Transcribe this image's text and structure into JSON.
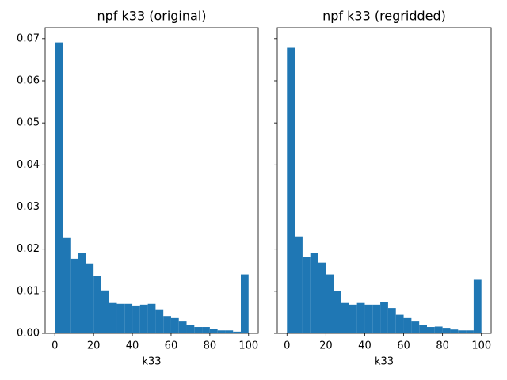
{
  "chart_data": [
    {
      "type": "histogram",
      "title": "npf k33 (original)",
      "x_label": "k33",
      "color": "#1f77b4",
      "bins": [
        0,
        4,
        8,
        12,
        16,
        20,
        24,
        28,
        32,
        36,
        40,
        44,
        48,
        52,
        56,
        60,
        64,
        68,
        72,
        76,
        80,
        84,
        88,
        92,
        96,
        100
      ],
      "values": [
        0.0691,
        0.0228,
        0.0177,
        0.019,
        0.0166,
        0.0136,
        0.0102,
        0.0072,
        0.007,
        0.007,
        0.0066,
        0.0068,
        0.007,
        0.0057,
        0.0041,
        0.0036,
        0.0028,
        0.0019,
        0.0015,
        0.0015,
        0.0011,
        0.0007,
        0.0007,
        0.0004,
        0.014
      ],
      "xlim": [
        -5,
        105
      ],
      "xticks": [
        0,
        20,
        40,
        60,
        80,
        100
      ],
      "ylim": [
        0,
        0.0726
      ],
      "yticks": [
        {
          "value": 0,
          "label": "0.00"
        },
        0.01,
        0.02,
        0.03,
        0.04,
        0.05,
        0.06,
        0.07
      ]
    },
    {
      "type": "histogram",
      "title": "npf k33 (regridded)",
      "x_label": "k33",
      "color": "#1f77b4",
      "bins": [
        0,
        4,
        8,
        12,
        16,
        20,
        24,
        28,
        32,
        36,
        40,
        44,
        48,
        52,
        56,
        60,
        64,
        68,
        72,
        76,
        80,
        84,
        88,
        92,
        96,
        100
      ],
      "values": [
        0.0678,
        0.023,
        0.0181,
        0.0191,
        0.0168,
        0.014,
        0.01,
        0.0072,
        0.0068,
        0.0072,
        0.0068,
        0.0068,
        0.0074,
        0.006,
        0.0044,
        0.0036,
        0.0028,
        0.002,
        0.0015,
        0.0016,
        0.0013,
        0.0009,
        0.0007,
        0.0007,
        0.0127
      ],
      "xlim": [
        -5,
        105
      ],
      "xticks": [
        0,
        20,
        40,
        60,
        80,
        100
      ],
      "ylim": [
        0,
        0.0726
      ]
    }
  ]
}
